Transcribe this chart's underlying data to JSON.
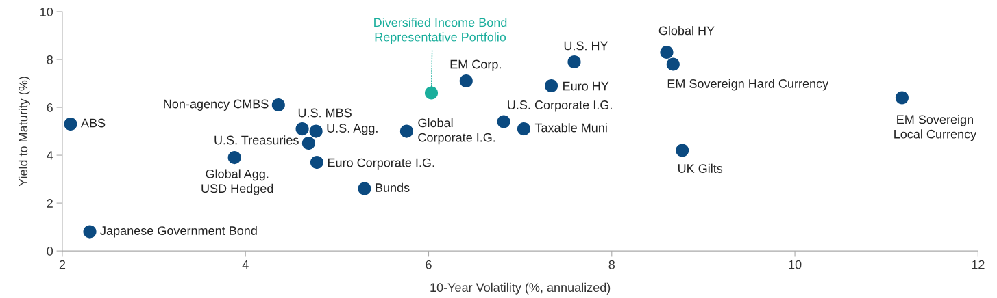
{
  "chart_data": {
    "type": "scatter",
    "xlabel": "10-Year Volatility (%, annualized)",
    "ylabel": "Yield to Maturity (%)",
    "xlim": [
      2,
      12
    ],
    "xticks": [
      2,
      4,
      6,
      8,
      10,
      12
    ],
    "ylim": [
      0,
      10
    ],
    "yticks": [
      0,
      2,
      4,
      6,
      8,
      10
    ],
    "grid": false,
    "legend": false,
    "marker": "circle",
    "series": [
      {
        "x": [
          2.09,
          2.3,
          3.88,
          4.36,
          4.62,
          4.69,
          4.77,
          4.78,
          5.3,
          5.76,
          6.03,
          6.41,
          6.82,
          7.04,
          7.34,
          7.59,
          8.6,
          8.67,
          8.77,
          11.17
        ],
        "values": [
          5.3,
          0.8,
          3.9,
          6.1,
          5.1,
          4.5,
          5.0,
          3.7,
          2.6,
          5.0,
          6.6,
          7.1,
          5.4,
          5.1,
          6.9,
          7.9,
          8.3,
          7.8,
          4.2,
          6.4
        ],
        "colors": [
          "#0b4a80",
          "#0b4a80",
          "#0b4a80",
          "#0b4a80",
          "#0b4a80",
          "#0b4a80",
          "#0b4a80",
          "#0b4a80",
          "#0b4a80",
          "#0b4a80",
          "#1aae9c",
          "#0b4a80",
          "#0b4a80",
          "#0b4a80",
          "#0b4a80",
          "#0b4a80",
          "#0b4a80",
          "#0b4a80",
          "#0b4a80",
          "#0b4a80"
        ]
      }
    ],
    "annotations": [
      {
        "text": "ABS",
        "x": 2.09,
        "y": 5.3
      },
      {
        "text": "Japanese Government Bond",
        "x": 2.3,
        "y": 0.8
      },
      {
        "text": "Global Agg.\nUSD Hedged",
        "x": 3.88,
        "y": 3.9
      },
      {
        "text": "Non-agency CMBS",
        "x": 4.36,
        "y": 6.1
      },
      {
        "text": "U.S. MBS",
        "x": 4.62,
        "y": 5.1
      },
      {
        "text": "U.S. Treasuries",
        "x": 4.69,
        "y": 4.5
      },
      {
        "text": "U.S. Agg.",
        "x": 4.77,
        "y": 5.0
      },
      {
        "text": "Euro Corporate I.G.",
        "x": 4.78,
        "y": 3.7
      },
      {
        "text": "Bunds",
        "x": 5.3,
        "y": 2.6
      },
      {
        "text": "Global\nCorporate I.G.",
        "x": 5.76,
        "y": 5.0
      },
      {
        "text": "Diversified Income Bond\nRepresentative Portfolio",
        "x": 6.03,
        "y": 6.6
      },
      {
        "text": "EM Corp.",
        "x": 6.41,
        "y": 7.1
      },
      {
        "text": "U.S. Corporate I.G.",
        "x": 6.82,
        "y": 5.4
      },
      {
        "text": "Taxable Muni",
        "x": 7.04,
        "y": 5.1
      },
      {
        "text": "Euro HY",
        "x": 7.34,
        "y": 6.9
      },
      {
        "text": "U.S. HY",
        "x": 7.59,
        "y": 7.9
      },
      {
        "text": "Global HY",
        "x": 8.6,
        "y": 8.3
      },
      {
        "text": "EM Sovereign Hard Currency",
        "x": 8.67,
        "y": 7.8
      },
      {
        "text": "UK Gilts",
        "x": 8.77,
        "y": 4.2
      },
      {
        "text": "EM Sovereign\nLocal Currency",
        "x": 11.17,
        "y": 6.4
      }
    ]
  }
}
